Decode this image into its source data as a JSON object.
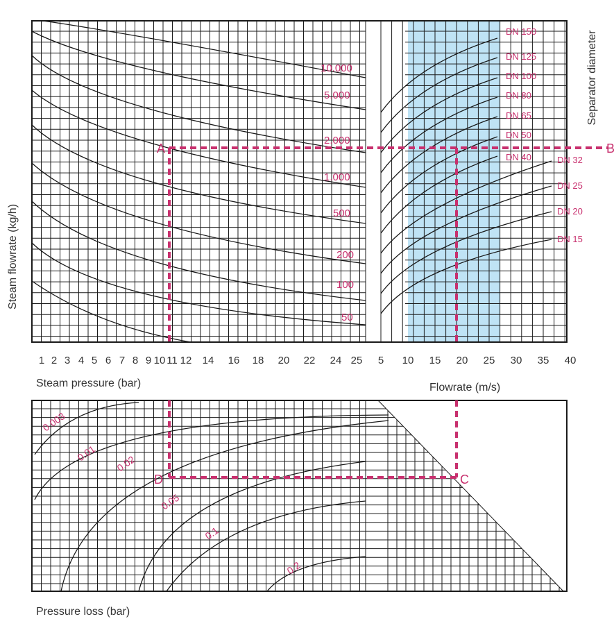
{
  "chart_data": {
    "type": "nomogram",
    "title": "",
    "colors": {
      "marker": "#c8306e",
      "highlight": "#bfe3f5",
      "grid": "#1a1a1a",
      "curve_label": "#c8306e"
    },
    "y_axis_label": "Steam flowrate (kg/h)",
    "right_axis_label": "Separator diameter",
    "pressure_axis": {
      "label": "Steam pressure (bar)",
      "ticks": [
        "1",
        "2",
        "3",
        "4",
        "5",
        "6",
        "7",
        "8",
        "9",
        "10",
        "11",
        "12",
        "14",
        "16",
        "18",
        "20",
        "22",
        "24",
        "25"
      ]
    },
    "velocity_axis": {
      "label": "Flowrate (m/s)",
      "ticks": [
        "5",
        "10",
        "15",
        "20",
        "25",
        "30",
        "35",
        "40"
      ],
      "highlight_range": [
        10,
        27
      ]
    },
    "flowrate_curves": [
      "10.000",
      "5.000",
      "2.000",
      "1.000",
      "500",
      "200",
      "100",
      "50"
    ],
    "diameter_curves": [
      "DN 150",
      "DN 125",
      "DN 100",
      "DN 80",
      "DN 65",
      "DN 50",
      "DN 40",
      "DN 32",
      "DN 25",
      "DN 20",
      "DN 15"
    ],
    "pressure_loss_axis": {
      "label": "Pressure loss (bar)"
    },
    "pressure_loss_curves": [
      "0.003",
      "0.01",
      "0.02",
      "0.05",
      "0.1",
      "0.2"
    ],
    "example_points": [
      "A",
      "B",
      "C",
      "D"
    ],
    "example_values": {
      "steam_pressure_bar": 10,
      "velocity_m_s": 19
    }
  }
}
